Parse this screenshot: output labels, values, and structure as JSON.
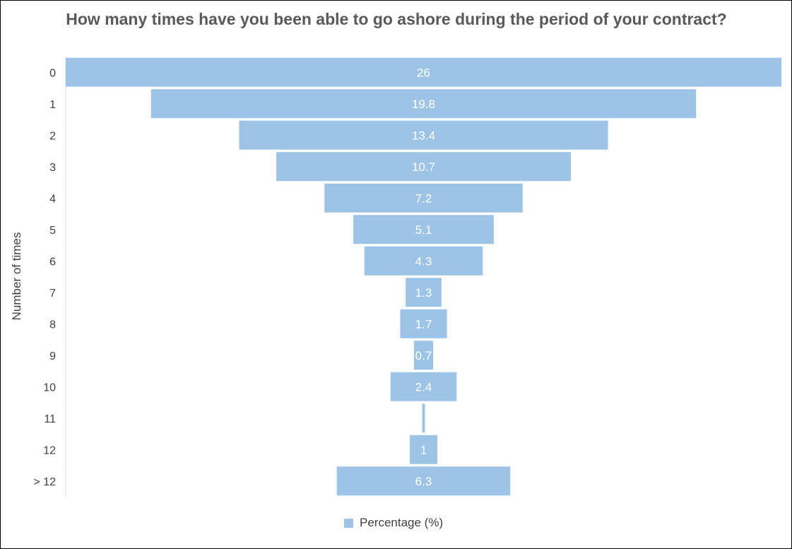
{
  "chart_data": {
    "type": "bar",
    "orientation": "horizontal-funnel",
    "title": "How many times have you been able to go ashore during the period of your contract?",
    "ylabel": "Number of times",
    "xlabel": "",
    "categories": [
      "0",
      "1",
      "2",
      "3",
      "4",
      "5",
      "6",
      "7",
      "8",
      "9",
      "10",
      "11",
      "12",
      "> 12"
    ],
    "series": [
      {
        "name": "Percentage (%)",
        "values": [
          26,
          19.8,
          13.4,
          10.7,
          7.2,
          5.1,
          4.3,
          1.3,
          1.7,
          0.7,
          2.4,
          0.1,
          1,
          6.3
        ],
        "labels": [
          "26",
          "19.8",
          "13.4",
          "10.7",
          "7.2",
          "5.1",
          "4.3",
          "1.3",
          "1.7",
          "0.7",
          "2.4",
          "",
          "1",
          "6.3"
        ],
        "color": "#9dc3e6"
      }
    ],
    "grid": false,
    "legend_position": "bottom",
    "data_label_color": "#ffffff"
  }
}
